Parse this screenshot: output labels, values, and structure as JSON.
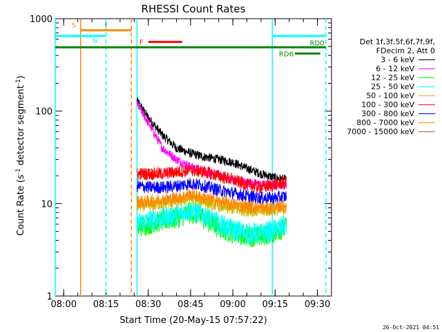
{
  "chart_data": {
    "type": "line",
    "title": "RHESSI Count Rates",
    "xlabel": "Start Time (20-May-15 07:57:22)",
    "ylabel": "Count Rate (s",
    "ylabel_sup1": "-1",
    "ylabel_mid": " detector segment",
    "ylabel_sup2": "-1",
    "ylabel_end": ")",
    "x_unit": "minutes",
    "xlim": [
      "07:57",
      "09:35"
    ],
    "x_ticks": [
      "08:00",
      "08:15",
      "08:30",
      "08:45",
      "09:00",
      "09:15",
      "09:30"
    ],
    "ylim": [
      1,
      1000
    ],
    "y_scale": "log",
    "y_ticks": [
      "1",
      "10",
      "100",
      "1000"
    ],
    "legend_header": [
      "Det 1f,3f,5f,6f,7f,9f,",
      "FDecim 2, Att 0"
    ],
    "series": [
      {
        "name": "3 - 6 keV",
        "color": "#000000",
        "points": [
          [
            "08:26",
            130
          ],
          [
            "08:30",
            85
          ],
          [
            "08:35",
            55
          ],
          [
            "08:40",
            40
          ],
          [
            "08:45",
            35
          ],
          [
            "08:50",
            32
          ],
          [
            "08:55",
            30
          ],
          [
            "09:00",
            28
          ],
          [
            "09:05",
            24
          ],
          [
            "09:10",
            21
          ],
          [
            "09:15",
            19
          ],
          [
            "09:19",
            18
          ]
        ]
      },
      {
        "name": "6 - 12 keV",
        "color": "#ff00ff",
        "points": [
          [
            "08:26",
            120
          ],
          [
            "08:30",
            75
          ],
          [
            "08:35",
            40
          ],
          [
            "08:40",
            30
          ],
          [
            "08:45",
            25
          ],
          [
            "08:50",
            22
          ],
          [
            "08:55",
            20
          ],
          [
            "09:00",
            18
          ],
          [
            "09:05",
            17
          ],
          [
            "09:10",
            16
          ],
          [
            "09:15",
            16
          ],
          [
            "09:19",
            16
          ]
        ]
      },
      {
        "name": "12 - 25 keV",
        "color": "#00ff00",
        "points": [
          [
            "08:26",
            5.5
          ],
          [
            "08:30",
            6
          ],
          [
            "08:35",
            6.5
          ],
          [
            "08:40",
            7
          ],
          [
            "08:45",
            8
          ],
          [
            "08:50",
            7
          ],
          [
            "08:55",
            5.5
          ],
          [
            "09:00",
            4.8
          ],
          [
            "09:05",
            4.5
          ],
          [
            "09:10",
            4.4
          ],
          [
            "09:15",
            5
          ],
          [
            "09:19",
            5.5
          ]
        ]
      },
      {
        "name": "25 - 50 keV",
        "color": "#00ffff",
        "points": [
          [
            "08:26",
            6
          ],
          [
            "08:30",
            6.5
          ],
          [
            "08:35",
            7
          ],
          [
            "08:40",
            7.5
          ],
          [
            "08:45",
            8.5
          ],
          [
            "08:50",
            7.5
          ],
          [
            "08:55",
            6
          ],
          [
            "09:00",
            5.2
          ],
          [
            "09:05",
            4.8
          ],
          [
            "09:10",
            4.7
          ],
          [
            "09:15",
            5.2
          ],
          [
            "09:19",
            5.8
          ]
        ]
      },
      {
        "name": "50 - 100 keV",
        "color": "#ccbb00",
        "points": [
          [
            "08:26",
            9.5
          ],
          [
            "08:30",
            9.5
          ],
          [
            "08:35",
            10
          ],
          [
            "08:40",
            10.5
          ],
          [
            "08:45",
            11.5
          ],
          [
            "08:50",
            10.5
          ],
          [
            "08:55",
            9.5
          ],
          [
            "09:00",
            8.8
          ],
          [
            "09:05",
            8.5
          ],
          [
            "09:10",
            8.3
          ],
          [
            "09:15",
            8.6
          ],
          [
            "09:19",
            8.8
          ]
        ]
      },
      {
        "name": "100 - 300 keV",
        "color": "#ff0000",
        "points": [
          [
            "08:26",
            21
          ],
          [
            "08:30",
            21
          ],
          [
            "08:35",
            21
          ],
          [
            "08:40",
            22
          ],
          [
            "08:45",
            23
          ],
          [
            "08:50",
            22
          ],
          [
            "08:55",
            20
          ],
          [
            "09:00",
            18
          ],
          [
            "09:05",
            16
          ],
          [
            "09:10",
            15
          ],
          [
            "09:15",
            16
          ],
          [
            "09:19",
            17
          ]
        ]
      },
      {
        "name": "300 - 800 keV",
        "color": "#0000ff",
        "points": [
          [
            "08:26",
            15.5
          ],
          [
            "08:30",
            15
          ],
          [
            "08:35",
            15
          ],
          [
            "08:40",
            15.5
          ],
          [
            "08:45",
            16.5
          ],
          [
            "08:50",
            15.5
          ],
          [
            "08:55",
            14
          ],
          [
            "09:00",
            13
          ],
          [
            "09:05",
            12
          ],
          [
            "09:10",
            11.5
          ],
          [
            "09:15",
            11.5
          ],
          [
            "09:19",
            12
          ]
        ]
      },
      {
        "name": "800 - 7000 keV",
        "color": "#ff8800",
        "points": [
          [
            "08:26",
            10.5
          ],
          [
            "08:30",
            10.5
          ],
          [
            "08:35",
            11
          ],
          [
            "08:40",
            11.5
          ],
          [
            "08:45",
            12.5
          ],
          [
            "08:50",
            11.5
          ],
          [
            "08:55",
            10.5
          ],
          [
            "09:00",
            9.8
          ],
          [
            "09:05",
            9.3
          ],
          [
            "09:10",
            9
          ],
          [
            "09:15",
            9
          ],
          [
            "09:19",
            9.5
          ]
        ]
      },
      {
        "name": "7000 - 15000 keV",
        "color": "#996600",
        "points": []
      }
    ],
    "vertical_markers": [
      {
        "time": "07:57",
        "color": "#00ffff",
        "style": "solid"
      },
      {
        "time": "08:06",
        "color": "#ff8800",
        "style": "solid"
      },
      {
        "time": "08:15",
        "color": "#00ffff",
        "style": "dashed"
      },
      {
        "time": "08:24",
        "color": "#ff8800",
        "style": "dashed"
      },
      {
        "time": "08:26",
        "color": "#00ffff",
        "style": "solid"
      },
      {
        "time": "09:14",
        "color": "#00ffff",
        "style": "solid"
      },
      {
        "time": "09:33",
        "color": "#00ffff",
        "style": "dashed"
      }
    ],
    "flag_bars": [
      {
        "label": "S",
        "color": "#ff8800",
        "start": "08:06",
        "end": "08:24",
        "level": 750
      },
      {
        "label": "N",
        "color": "#00ffff",
        "start": "07:57",
        "end": "08:15",
        "level": 650
      },
      {
        "label": "",
        "color": "#00ffff",
        "start": "09:14",
        "end": "09:33",
        "level": 650
      },
      {
        "label": "F",
        "color": "#ff0000",
        "start": "08:30",
        "end": "08:42",
        "level": 560
      },
      {
        "label": "",
        "color": "#008800",
        "start": "07:57",
        "end": "09:33",
        "level": 490
      },
      {
        "label": "RD0",
        "color": "#008800",
        "start": "09:24",
        "end": "09:31",
        "level": 490
      },
      {
        "label": "RD6",
        "color": "#008800",
        "start": "09:22",
        "end": "09:31",
        "level": 420
      }
    ]
  },
  "timestamp": "26-Oct-2021 04:51"
}
